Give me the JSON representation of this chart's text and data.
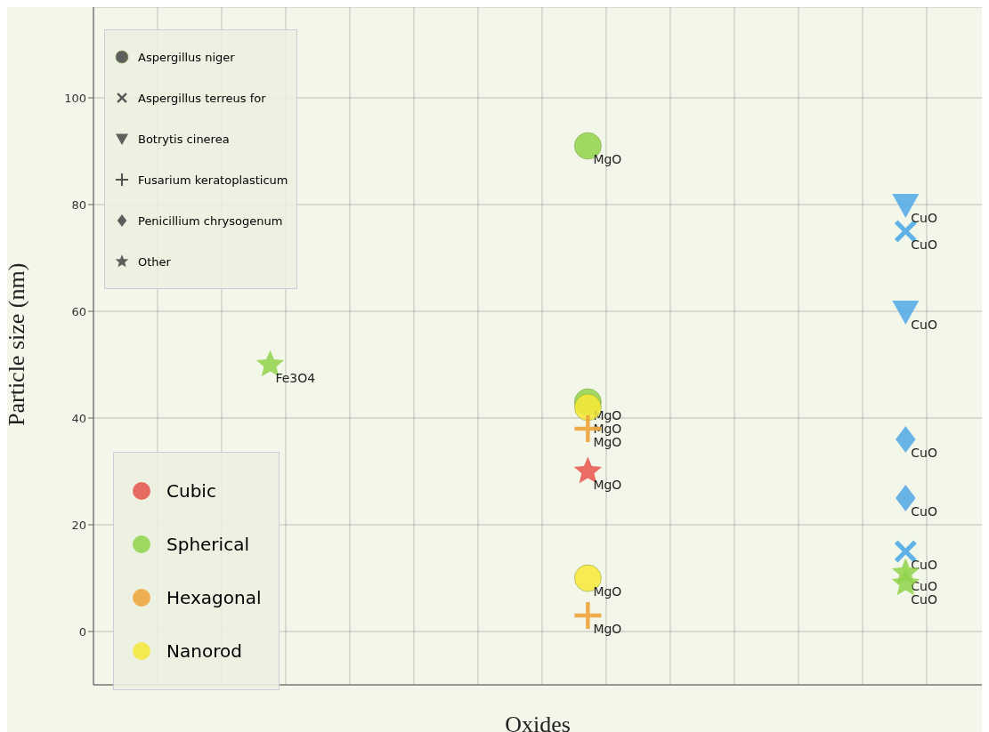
{
  "chart_data": {
    "type": "scatter",
    "xlabel": "Oxides",
    "ylabel": "Particle size (nm)",
    "categories": [
      "Fe3O4",
      "MgO",
      "CuO"
    ],
    "tick_labels": "y",
    "ylim": [
      -10,
      117
    ],
    "yticks": [
      0,
      20,
      40,
      60,
      80,
      100
    ],
    "grid": true,
    "annotations": [
      "Aspergillus niger",
      "Aspergillus terreus for",
      "Botrytis cinerea",
      "Fusarium keratoplasticum",
      "Penicillium chrysogenum",
      "Other",
      "Cubic",
      "Spherical",
      "Hexagonal",
      "Nanorod"
    ],
    "series": [
      {
        "marker": "circle",
        "color": "#8fd34a",
        "x": [
          "MgO",
          "MgO"
        ],
        "values": [
          91,
          43
        ],
        "value_labels": [
          "MgO",
          "MgO"
        ]
      },
      {
        "marker": "circle",
        "color": "#f7e838",
        "x": [
          "MgO",
          "MgO"
        ],
        "values": [
          42,
          10
        ],
        "value_labels": [
          "MgO",
          "MgO"
        ]
      },
      {
        "marker": "x",
        "color": "#4fa8e6",
        "x": [
          "CuO",
          "CuO"
        ],
        "values": [
          75,
          15
        ],
        "value_labels": [
          "CuO",
          "CuO"
        ]
      },
      {
        "marker": "triangle",
        "color": "#4fa8e6",
        "x": [
          "CuO",
          "CuO"
        ],
        "values": [
          80,
          60
        ],
        "value_labels": [
          "CuO",
          "CuO"
        ]
      },
      {
        "marker": "cross",
        "color": "#eea33a",
        "x": [
          "MgO",
          "MgO"
        ],
        "values": [
          38,
          3
        ],
        "value_labels": [
          "MgO",
          "MgO"
        ]
      },
      {
        "marker": "diamond",
        "color": "#4fa8e6",
        "x": [
          "CuO",
          "CuO"
        ],
        "values": [
          36,
          25
        ],
        "value_labels": [
          "CuO",
          "CuO"
        ]
      },
      {
        "marker": "star",
        "color": "#8fd34a",
        "x": [
          "Fe3O4",
          "CuO",
          "CuO"
        ],
        "values": [
          50,
          11,
          9
        ],
        "value_labels": [
          "Fe3O4",
          "CuO",
          "CuO"
        ]
      },
      {
        "marker": "star",
        "color": "#e8534a",
        "x": [
          "MgO"
        ],
        "values": [
          30
        ],
        "value_labels": [
          "MgO"
        ]
      }
    ]
  }
}
